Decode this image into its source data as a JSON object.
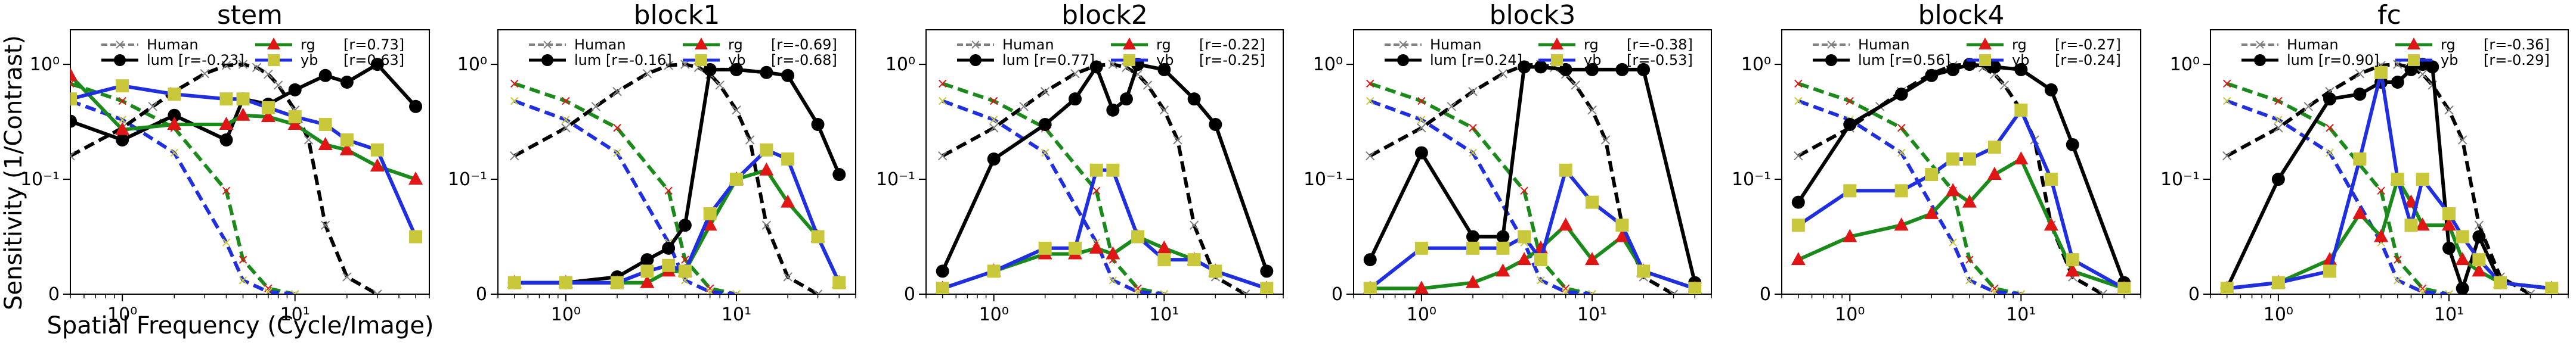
{
  "figure": {
    "ylabel": "Sensitivity (1/Contrast)",
    "xlabel": "Spatial Frequency (Cycle/Image)"
  },
  "colors": {
    "lum": "#000000",
    "rg": "#1a8a1a",
    "yb": "#1f2ee0",
    "human": "#808080",
    "rg_marker": "#e01515",
    "yb_marker": "#c8c83a"
  },
  "chart_data": [
    {
      "type": "line",
      "title": "stem",
      "xscale": "log",
      "yscale": "symlog",
      "xlim": [
        0.5,
        60
      ],
      "ylim": [
        0,
        2
      ],
      "legend": {
        "human": "Human",
        "lum": "lum [r=-0.23]",
        "rg": "rg",
        "rg_r": "[r=0.73]",
        "yb": "yb",
        "yb_r": "[r=0.63]"
      },
      "series": [
        {
          "key": "lum",
          "x": [
            0.5,
            1,
            2,
            4,
            5,
            7,
            10,
            15,
            20,
            30,
            50
          ],
          "y": [
            0.32,
            0.22,
            0.36,
            0.22,
            0.5,
            0.45,
            0.6,
            0.8,
            0.7,
            1.0,
            0.43
          ]
        },
        {
          "key": "rg",
          "x": [
            0.5,
            1,
            2,
            4,
            5,
            7,
            10,
            15,
            20,
            30,
            50
          ],
          "y": [
            0.8,
            0.27,
            0.3,
            0.3,
            0.36,
            0.35,
            0.3,
            0.2,
            0.18,
            0.13,
            0.1
          ]
        },
        {
          "key": "yb",
          "x": [
            0.5,
            1,
            2,
            4,
            5,
            7,
            10,
            15,
            20,
            30,
            50
          ],
          "y": [
            0.5,
            0.65,
            0.55,
            0.5,
            0.5,
            0.42,
            0.35,
            0.3,
            0.22,
            0.18,
            0.05
          ]
        }
      ],
      "human_x": [
        0.5,
        1,
        1.5,
        2,
        3,
        4,
        5,
        6,
        7,
        8,
        10,
        12,
        15,
        20,
        30
      ],
      "human_y": [
        0.16,
        0.28,
        0.43,
        0.58,
        0.83,
        0.98,
        1.0,
        0.94,
        0.82,
        0.66,
        0.4,
        0.22,
        0.06,
        0.015,
        0
      ],
      "chrom_x": [
        0.5,
        1,
        2,
        4,
        5,
        7,
        10
      ],
      "chrom_rg": [
        0.68,
        0.48,
        0.28,
        0.09,
        0.03,
        0.005,
        0
      ],
      "chrom_yb": [
        0.48,
        0.33,
        0.17,
        0.045,
        0.012,
        0.002,
        0
      ],
      "xticks": [
        {
          "v": 1,
          "t": "10⁰"
        },
        {
          "v": 10,
          "t": "10¹"
        }
      ],
      "yticks": [
        {
          "v": 1,
          "t": "10⁰"
        },
        {
          "v": 0.1,
          "t": "10⁻¹"
        },
        {
          "v": 0,
          "t": "0"
        }
      ]
    },
    {
      "type": "line",
      "title": "block1",
      "xscale": "log",
      "yscale": "symlog",
      "xlim": [
        0.4,
        50
      ],
      "ylim": [
        0,
        2
      ],
      "legend": {
        "human": "Human",
        "lum": "lum [r=-0.16]",
        "rg": "rg",
        "rg_r": "[r=-0.69]",
        "yb": "yb",
        "yb_r": "[r=-0.68]"
      },
      "series": [
        {
          "key": "lum",
          "x": [
            0.5,
            1,
            2,
            3,
            4,
            5,
            7,
            10,
            15,
            20,
            30,
            40
          ],
          "y": [
            0.01,
            0.01,
            0.015,
            0.03,
            0.04,
            0.06,
            0.9,
            0.9,
            0.85,
            0.8,
            0.3,
            0.11
          ]
        },
        {
          "key": "rg",
          "x": [
            0.5,
            1,
            2,
            3,
            4,
            5,
            7,
            10,
            15,
            20,
            30,
            40
          ],
          "y": [
            0.01,
            0.01,
            0.01,
            0.01,
            0.02,
            0.02,
            0.06,
            0.1,
            0.12,
            0.08,
            0.05,
            0.01
          ]
        },
        {
          "key": "yb",
          "x": [
            0.5,
            1,
            2,
            3,
            4,
            5,
            7,
            10,
            15,
            20,
            30,
            40
          ],
          "y": [
            0.01,
            0.01,
            0.01,
            0.02,
            0.025,
            0.02,
            0.07,
            0.1,
            0.18,
            0.15,
            0.05,
            0.01
          ]
        }
      ],
      "human_x": [
        0.5,
        1,
        1.5,
        2,
        3,
        4,
        5,
        6,
        7,
        8,
        10,
        12,
        15,
        20,
        30
      ],
      "human_y": [
        0.16,
        0.28,
        0.43,
        0.58,
        0.83,
        0.98,
        1.0,
        0.94,
        0.82,
        0.66,
        0.4,
        0.22,
        0.06,
        0.015,
        0
      ],
      "chrom_x": [
        0.5,
        1,
        2,
        4,
        5,
        7,
        10
      ],
      "chrom_rg": [
        0.68,
        0.48,
        0.28,
        0.09,
        0.03,
        0.005,
        0
      ],
      "chrom_yb": [
        0.48,
        0.33,
        0.17,
        0.045,
        0.012,
        0.002,
        0
      ],
      "xticks": [
        {
          "v": 1,
          "t": "10⁰"
        },
        {
          "v": 10,
          "t": "10¹"
        }
      ],
      "yticks": [
        {
          "v": 1,
          "t": "10⁰"
        },
        {
          "v": 0.1,
          "t": "10⁻¹"
        },
        {
          "v": 0,
          "t": "0"
        }
      ]
    },
    {
      "type": "line",
      "title": "block2",
      "xscale": "log",
      "yscale": "symlog",
      "xlim": [
        0.4,
        50
      ],
      "ylim": [
        0,
        2
      ],
      "legend": {
        "human": "Human",
        "lum": "lum [r=0.77]",
        "rg": "rg",
        "rg_r": "[r=-0.22]",
        "yb": "yb",
        "yb_r": "[r=-0.25]"
      },
      "series": [
        {
          "key": "lum",
          "x": [
            0.5,
            1,
            2,
            3,
            4,
            5,
            6,
            7,
            10,
            15,
            20,
            40
          ],
          "y": [
            0.02,
            0.15,
            0.3,
            0.5,
            0.95,
            0.4,
            0.5,
            1.0,
            0.9,
            0.5,
            0.3,
            0.02
          ]
        },
        {
          "key": "rg",
          "x": [
            0.5,
            1,
            2,
            3,
            4,
            5,
            7,
            10,
            15,
            20,
            40
          ],
          "y": [
            0.005,
            0.02,
            0.035,
            0.035,
            0.04,
            0.035,
            0.05,
            0.04,
            0.03,
            0.02,
            0.005
          ]
        },
        {
          "key": "yb",
          "x": [
            0.5,
            1,
            2,
            3,
            4,
            5,
            7,
            10,
            15,
            20,
            40
          ],
          "y": [
            0.005,
            0.02,
            0.04,
            0.04,
            0.12,
            0.12,
            0.05,
            0.03,
            0.03,
            0.02,
            0.005
          ]
        }
      ],
      "human_x": [
        0.5,
        1,
        1.5,
        2,
        3,
        4,
        5,
        6,
        7,
        8,
        10,
        12,
        15,
        20,
        30
      ],
      "human_y": [
        0.16,
        0.28,
        0.43,
        0.58,
        0.83,
        0.98,
        1.0,
        0.94,
        0.82,
        0.66,
        0.4,
        0.22,
        0.06,
        0.015,
        0
      ],
      "chrom_x": [
        0.5,
        1,
        2,
        4,
        5,
        7,
        10
      ],
      "chrom_rg": [
        0.68,
        0.48,
        0.28,
        0.09,
        0.03,
        0.005,
        0
      ],
      "chrom_yb": [
        0.48,
        0.33,
        0.17,
        0.045,
        0.012,
        0.002,
        0
      ],
      "xticks": [
        {
          "v": 1,
          "t": "10⁰"
        },
        {
          "v": 10,
          "t": "10¹"
        }
      ],
      "yticks": [
        {
          "v": 1,
          "t": "10⁰"
        },
        {
          "v": 0.1,
          "t": "10⁻¹"
        },
        {
          "v": 0,
          "t": "0"
        }
      ]
    },
    {
      "type": "line",
      "title": "block3",
      "xscale": "log",
      "yscale": "symlog",
      "xlim": [
        0.4,
        50
      ],
      "ylim": [
        0,
        2
      ],
      "legend": {
        "human": "Human",
        "lum": "lum [r=0.24]",
        "rg": "rg",
        "rg_r": "[r=-0.38]",
        "yb": "yb",
        "yb_r": "[r=-0.53]"
      },
      "series": [
        {
          "key": "lum",
          "x": [
            0.5,
            1,
            2,
            3,
            4,
            5,
            7,
            10,
            15,
            20,
            40
          ],
          "y": [
            0.03,
            0.17,
            0.05,
            0.05,
            0.95,
            0.95,
            0.9,
            0.9,
            0.9,
            0.9,
            0.01
          ]
        },
        {
          "key": "rg",
          "x": [
            0.5,
            1,
            2,
            3,
            4,
            5,
            7,
            10,
            15,
            20,
            40
          ],
          "y": [
            0.005,
            0.005,
            0.01,
            0.02,
            0.03,
            0.04,
            0.06,
            0.03,
            0.05,
            0.02,
            0.005
          ]
        },
        {
          "key": "yb",
          "x": [
            0.5,
            1,
            2,
            3,
            4,
            5,
            7,
            10,
            15,
            20,
            40
          ],
          "y": [
            0.005,
            0.04,
            0.04,
            0.04,
            0.05,
            0.03,
            0.12,
            0.08,
            0.06,
            0.02,
            0.005
          ]
        }
      ],
      "human_x": [
        0.5,
        1,
        1.5,
        2,
        3,
        4,
        5,
        6,
        7,
        8,
        10,
        12,
        15,
        20,
        30
      ],
      "human_y": [
        0.16,
        0.28,
        0.43,
        0.58,
        0.83,
        0.98,
        1.0,
        0.94,
        0.82,
        0.66,
        0.4,
        0.22,
        0.06,
        0.015,
        0
      ],
      "chrom_x": [
        0.5,
        1,
        2,
        4,
        5,
        7,
        10
      ],
      "chrom_rg": [
        0.68,
        0.48,
        0.28,
        0.09,
        0.03,
        0.005,
        0
      ],
      "chrom_yb": [
        0.48,
        0.33,
        0.17,
        0.045,
        0.012,
        0.002,
        0
      ],
      "xticks": [
        {
          "v": 1,
          "t": "10⁰"
        },
        {
          "v": 10,
          "t": "10¹"
        }
      ],
      "yticks": [
        {
          "v": 1,
          "t": "10⁰"
        },
        {
          "v": 0.1,
          "t": "10⁻¹"
        },
        {
          "v": 0,
          "t": "0"
        }
      ]
    },
    {
      "type": "line",
      "title": "block4",
      "xscale": "log",
      "yscale": "symlog",
      "xlim": [
        0.4,
        50
      ],
      "ylim": [
        0,
        2
      ],
      "legend": {
        "human": "Human",
        "lum": "lum [r=0.56]",
        "rg": "rg",
        "rg_r": "[r=-0.27]",
        "yb": "yb",
        "yb_r": "[r=-0.24]"
      },
      "series": [
        {
          "key": "lum",
          "x": [
            0.5,
            1,
            2,
            3,
            4,
            5,
            7,
            10,
            15,
            20,
            40
          ],
          "y": [
            0.08,
            0.3,
            0.55,
            0.8,
            0.9,
            1.0,
            0.95,
            0.9,
            0.6,
            0.2,
            0.01
          ]
        },
        {
          "key": "rg",
          "x": [
            0.5,
            1,
            2,
            3,
            4,
            5,
            7,
            10,
            15,
            20,
            40
          ],
          "y": [
            0.03,
            0.05,
            0.06,
            0.07,
            0.09,
            0.08,
            0.11,
            0.15,
            0.06,
            0.02,
            0.005
          ]
        },
        {
          "key": "yb",
          "x": [
            0.5,
            1,
            2,
            3,
            4,
            5,
            7,
            10,
            15,
            20,
            40
          ],
          "y": [
            0.06,
            0.09,
            0.09,
            0.11,
            0.15,
            0.15,
            0.19,
            0.4,
            0.1,
            0.03,
            0.005
          ]
        }
      ],
      "human_x": [
        0.5,
        1,
        1.5,
        2,
        3,
        4,
        5,
        6,
        7,
        8,
        10,
        12,
        15,
        20,
        30
      ],
      "human_y": [
        0.16,
        0.28,
        0.43,
        0.58,
        0.83,
        0.98,
        1.0,
        0.94,
        0.82,
        0.66,
        0.4,
        0.22,
        0.06,
        0.015,
        0
      ],
      "chrom_x": [
        0.5,
        1,
        2,
        4,
        5,
        7,
        10
      ],
      "chrom_rg": [
        0.68,
        0.48,
        0.28,
        0.09,
        0.03,
        0.005,
        0
      ],
      "chrom_yb": [
        0.48,
        0.33,
        0.17,
        0.045,
        0.012,
        0.002,
        0
      ],
      "xticks": [
        {
          "v": 1,
          "t": "10⁰"
        },
        {
          "v": 10,
          "t": "10¹"
        }
      ],
      "yticks": [
        {
          "v": 1,
          "t": "10⁰"
        },
        {
          "v": 0.1,
          "t": "10⁻¹"
        },
        {
          "v": 0,
          "t": "0"
        }
      ]
    },
    {
      "type": "line",
      "title": "fc",
      "xscale": "log",
      "yscale": "symlog",
      "xlim": [
        0.4,
        50
      ],
      "ylim": [
        0,
        2
      ],
      "legend": {
        "human": "Human",
        "lum": "lum [r=0.90]",
        "rg": "rg",
        "rg_r": "[r=-0.36]",
        "yb": "yb",
        "yb_r": "[r=-0.29]"
      },
      "series": [
        {
          "key": "lum",
          "x": [
            0.5,
            1,
            2,
            3,
            4,
            5,
            6,
            7,
            8,
            10,
            12,
            15,
            20,
            40
          ],
          "y": [
            0.005,
            0.1,
            0.5,
            0.55,
            0.7,
            0.7,
            0.9,
            1.0,
            0.95,
            0.04,
            0.005,
            0.05,
            0.01,
            0.005
          ]
        },
        {
          "key": "rg",
          "x": [
            0.5,
            1,
            2,
            3,
            4,
            5,
            6,
            7,
            10,
            12,
            15,
            20,
            40
          ],
          "y": [
            0.005,
            0.01,
            0.03,
            0.07,
            0.05,
            0.1,
            0.08,
            0.06,
            0.06,
            0.03,
            0.02,
            0.01,
            0.005
          ]
        },
        {
          "key": "yb",
          "x": [
            0.5,
            1,
            2,
            3,
            4,
            5,
            6,
            7,
            10,
            12,
            15,
            20,
            40
          ],
          "y": [
            0.005,
            0.01,
            0.02,
            0.15,
            0.85,
            0.1,
            0.06,
            0.1,
            0.07,
            0.05,
            0.03,
            0.01,
            0.005
          ]
        }
      ],
      "human_x": [
        0.5,
        1,
        1.5,
        2,
        3,
        4,
        5,
        6,
        7,
        8,
        10,
        12,
        15,
        20,
        30
      ],
      "human_y": [
        0.16,
        0.28,
        0.43,
        0.58,
        0.83,
        0.98,
        1.0,
        0.94,
        0.82,
        0.66,
        0.4,
        0.22,
        0.06,
        0.015,
        0
      ],
      "chrom_x": [
        0.5,
        1,
        2,
        4,
        5,
        7,
        10
      ],
      "chrom_rg": [
        0.68,
        0.48,
        0.28,
        0.09,
        0.03,
        0.005,
        0
      ],
      "chrom_yb": [
        0.48,
        0.33,
        0.17,
        0.045,
        0.012,
        0.002,
        0
      ],
      "xticks": [
        {
          "v": 1,
          "t": "10⁰"
        },
        {
          "v": 10,
          "t": "10¹"
        }
      ],
      "yticks": [
        {
          "v": 1,
          "t": "10⁰"
        },
        {
          "v": 0.1,
          "t": "10⁻¹"
        },
        {
          "v": 0,
          "t": "0"
        }
      ]
    }
  ]
}
